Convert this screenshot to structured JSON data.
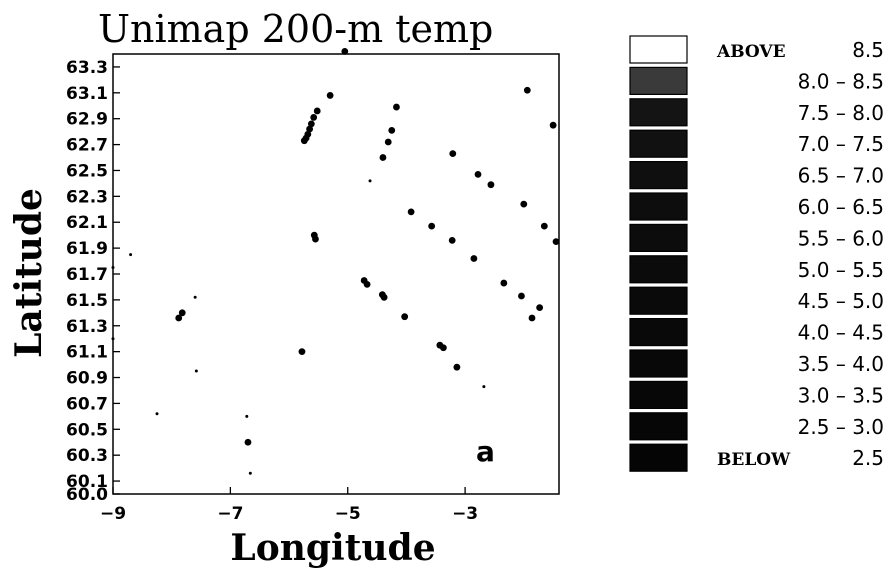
{
  "chart_data": {
    "type": "scatter",
    "title": "Unimap 200-m temp",
    "xlabel": "Longitude",
    "ylabel": "Latitude",
    "xlim": [
      -9,
      -1.4
    ],
    "ylim": [
      60.0,
      63.4
    ],
    "xticks": [
      -9,
      -7,
      -5,
      -3
    ],
    "xtick_labels": [
      "-9",
      "-7",
      "-5",
      "-3"
    ],
    "yticks": [
      60.0,
      60.1,
      60.3,
      60.5,
      60.7,
      60.9,
      61.1,
      61.3,
      61.5,
      61.7,
      61.9,
      62.1,
      62.3,
      62.5,
      62.7,
      62.9,
      63.1,
      63.3
    ],
    "ytick_labels": [
      "60.0",
      "60.1",
      "60.3",
      "60.5",
      "60.7",
      "60.9",
      "61.1",
      "61.3",
      "61.5",
      "61.7",
      "61.9",
      "62.1",
      "62.3",
      "62.5",
      "62.7",
      "62.9",
      "63.1",
      "63.3"
    ],
    "panel_label": "a",
    "grid": false,
    "legend_position": "right",
    "legend": [
      {
        "label_word": "ABOVE",
        "label_value": "8.5",
        "fill": "#ffffff"
      },
      {
        "label": "8.0 – 8.5",
        "fill": "#3a3a3a"
      },
      {
        "label": "7.5 – 8.0",
        "fill": "#141414"
      },
      {
        "label": "7.0 – 7.5",
        "fill": "#111111"
      },
      {
        "label": "6.5 – 7.0",
        "fill": "#0f0f0f"
      },
      {
        "label": "6.0 – 6.5",
        "fill": "#0d0d0d"
      },
      {
        "label": "5.5 – 6.0",
        "fill": "#0c0c0c"
      },
      {
        "label": "5.0 – 5.5",
        "fill": "#0b0b0b"
      },
      {
        "label": "4.5 – 5.0",
        "fill": "#0a0a0a"
      },
      {
        "label": "4.0 – 4.5",
        "fill": "#090909"
      },
      {
        "label": "3.5 – 4.0",
        "fill": "#080808"
      },
      {
        "label": "3.0 – 3.5",
        "fill": "#070707"
      },
      {
        "label": "2.5 – 3.0",
        "fill": "#060606"
      },
      {
        "label_word": "BELOW",
        "label_value": "2.5",
        "fill": "#050505"
      }
    ],
    "points": [
      {
        "x": -5.05,
        "y": 63.42,
        "size": "large"
      },
      {
        "x": -5.3,
        "y": 63.08,
        "size": "large"
      },
      {
        "x": -5.52,
        "y": 62.96,
        "size": "large"
      },
      {
        "x": -5.58,
        "y": 62.91,
        "size": "large"
      },
      {
        "x": -5.62,
        "y": 62.86,
        "size": "large"
      },
      {
        "x": -5.65,
        "y": 62.82,
        "size": "large"
      },
      {
        "x": -5.68,
        "y": 62.78,
        "size": "large"
      },
      {
        "x": -5.71,
        "y": 62.75,
        "size": "large"
      },
      {
        "x": -5.74,
        "y": 62.73,
        "size": "large"
      },
      {
        "x": -4.17,
        "y": 62.99,
        "size": "large"
      },
      {
        "x": -4.25,
        "y": 62.81,
        "size": "large"
      },
      {
        "x": -4.31,
        "y": 62.72,
        "size": "large"
      },
      {
        "x": -4.4,
        "y": 62.6,
        "size": "large"
      },
      {
        "x": -4.62,
        "y": 62.42,
        "size": "small"
      },
      {
        "x": -3.21,
        "y": 62.63,
        "size": "large"
      },
      {
        "x": -2.78,
        "y": 62.47,
        "size": "large"
      },
      {
        "x": -2.56,
        "y": 62.39,
        "size": "large"
      },
      {
        "x": -3.92,
        "y": 62.18,
        "size": "large"
      },
      {
        "x": -3.57,
        "y": 62.07,
        "size": "large"
      },
      {
        "x": -3.22,
        "y": 61.96,
        "size": "large"
      },
      {
        "x": -2.85,
        "y": 61.82,
        "size": "large"
      },
      {
        "x": -2.0,
        "y": 62.24,
        "size": "large"
      },
      {
        "x": -1.65,
        "y": 62.07,
        "size": "large"
      },
      {
        "x": -1.45,
        "y": 61.95,
        "size": "large"
      },
      {
        "x": -1.94,
        "y": 63.12,
        "size": "large"
      },
      {
        "x": -1.5,
        "y": 62.85,
        "size": "large"
      },
      {
        "x": -5.57,
        "y": 62.0,
        "size": "large"
      },
      {
        "x": -5.55,
        "y": 61.97,
        "size": "large"
      },
      {
        "x": -4.72,
        "y": 61.65,
        "size": "large"
      },
      {
        "x": -4.67,
        "y": 61.62,
        "size": "large"
      },
      {
        "x": -4.41,
        "y": 61.54,
        "size": "large"
      },
      {
        "x": -4.38,
        "y": 61.52,
        "size": "large"
      },
      {
        "x": -4.03,
        "y": 61.37,
        "size": "large"
      },
      {
        "x": -3.43,
        "y": 61.15,
        "size": "large"
      },
      {
        "x": -3.37,
        "y": 61.13,
        "size": "large"
      },
      {
        "x": -3.14,
        "y": 60.98,
        "size": "large"
      },
      {
        "x": -2.68,
        "y": 60.83,
        "size": "small"
      },
      {
        "x": -2.34,
        "y": 61.63,
        "size": "large"
      },
      {
        "x": -2.04,
        "y": 61.53,
        "size": "large"
      },
      {
        "x": -1.73,
        "y": 61.44,
        "size": "large"
      },
      {
        "x": -1.86,
        "y": 61.36,
        "size": "large"
      },
      {
        "x": -5.78,
        "y": 61.1,
        "size": "large"
      },
      {
        "x": -7.82,
        "y": 61.4,
        "size": "large"
      },
      {
        "x": -7.88,
        "y": 61.36,
        "size": "large"
      },
      {
        "x": -7.6,
        "y": 61.52,
        "size": "small"
      },
      {
        "x": -7.58,
        "y": 60.95,
        "size": "small"
      },
      {
        "x": -8.25,
        "y": 60.62,
        "size": "small"
      },
      {
        "x": -6.72,
        "y": 60.6,
        "size": "small"
      },
      {
        "x": -6.7,
        "y": 60.4,
        "size": "large"
      },
      {
        "x": -6.66,
        "y": 60.16,
        "size": "small"
      },
      {
        "x": -8.7,
        "y": 61.85,
        "size": "small"
      },
      {
        "x": -9.0,
        "y": 61.75,
        "size": "small"
      },
      {
        "x": -9.0,
        "y": 61.2,
        "size": "small"
      }
    ]
  }
}
